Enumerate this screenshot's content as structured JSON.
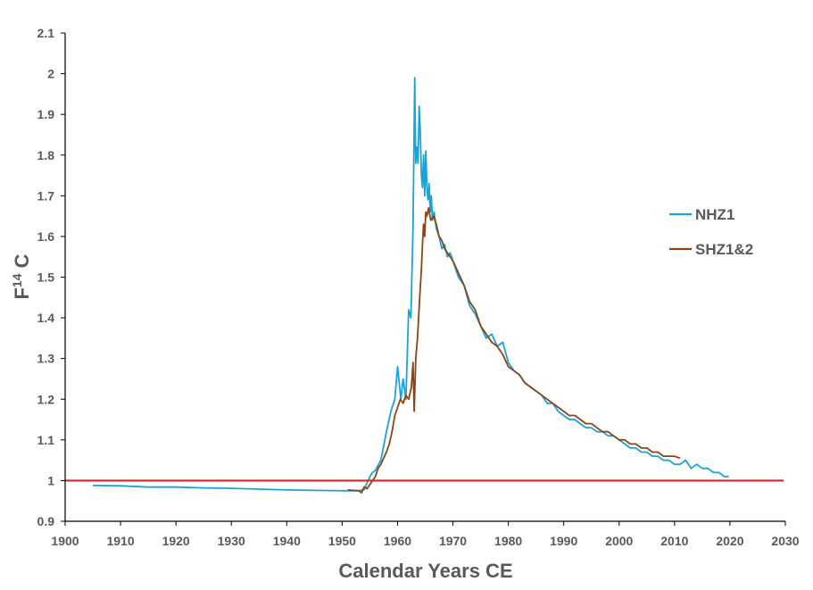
{
  "chart_data": {
    "type": "line",
    "title": "",
    "xlabel": "Calendar Years CE",
    "ylabel": "F",
    "ylabel_superscript": "14",
    "ylabel_suffix": " C",
    "xlim": [
      1900,
      2030
    ],
    "ylim": [
      0.9,
      2.1
    ],
    "xticks": [
      1900,
      1910,
      1920,
      1930,
      1940,
      1950,
      1960,
      1970,
      1980,
      1990,
      2000,
      2010,
      2020,
      2030
    ],
    "yticks": [
      0.9,
      1,
      1.1,
      1.2,
      1.3,
      1.4,
      1.5,
      1.6,
      1.7,
      1.8,
      1.9,
      2,
      2.1
    ],
    "ytick_labels": [
      "0.9",
      "1",
      "1.1",
      "1.2",
      "1.3",
      "1.4",
      "1.5",
      "1.6",
      "1.7",
      "1.8",
      "1.9",
      "2",
      "2.1"
    ],
    "grid": false,
    "legend_position": "right",
    "reference_line": {
      "y": 1.0,
      "color": "#d9262e"
    },
    "series": [
      {
        "name": "NHZ1",
        "color": "#1aa3d6",
        "x": [
          1905,
          1910,
          1915,
          1920,
          1925,
          1930,
          1935,
          1940,
          1945,
          1950,
          1953,
          1954,
          1955,
          1955.5,
          1956,
          1957,
          1958,
          1958.8,
          1959.5,
          1960,
          1960.6,
          1961,
          1961.5,
          1962,
          1962.4,
          1962.8,
          1963.1,
          1963.3,
          1963.5,
          1963.7,
          1963.9,
          1964.1,
          1964.3,
          1964.5,
          1964.7,
          1964.9,
          1965.1,
          1965.3,
          1965.5,
          1965.7,
          1965.9,
          1966.1,
          1966.3,
          1966.6,
          1967,
          1967.5,
          1968,
          1968.5,
          1969,
          1969.5,
          1970,
          1971,
          1972,
          1973,
          1974,
          1975,
          1976,
          1977,
          1978,
          1979,
          1980,
          1981,
          1982,
          1983,
          1984,
          1985,
          1986,
          1987,
          1988,
          1989,
          1990,
          1991,
          1992,
          1993,
          1994,
          1995,
          1996,
          1997,
          1998,
          1999,
          2000,
          2001,
          2002,
          2003,
          2004,
          2005,
          2006,
          2007,
          2008,
          2009,
          2010,
          2011,
          2012,
          2013,
          2014,
          2015,
          2016,
          2017,
          2018,
          2019,
          2019.8
        ],
        "y": [
          0.988,
          0.987,
          0.984,
          0.984,
          0.982,
          0.981,
          0.979,
          0.977,
          0.976,
          0.975,
          0.975,
          0.978,
          1.01,
          1.02,
          1.025,
          1.05,
          1.12,
          1.17,
          1.2,
          1.28,
          1.2,
          1.25,
          1.2,
          1.42,
          1.4,
          1.62,
          1.99,
          1.78,
          1.82,
          1.78,
          1.92,
          1.86,
          1.75,
          1.72,
          1.8,
          1.7,
          1.81,
          1.72,
          1.69,
          1.73,
          1.66,
          1.7,
          1.64,
          1.66,
          1.62,
          1.6,
          1.57,
          1.58,
          1.55,
          1.56,
          1.54,
          1.5,
          1.48,
          1.43,
          1.41,
          1.38,
          1.35,
          1.36,
          1.33,
          1.34,
          1.29,
          1.27,
          1.26,
          1.24,
          1.23,
          1.22,
          1.21,
          1.19,
          1.19,
          1.17,
          1.16,
          1.15,
          1.15,
          1.14,
          1.13,
          1.13,
          1.12,
          1.12,
          1.11,
          1.11,
          1.1,
          1.09,
          1.08,
          1.08,
          1.07,
          1.07,
          1.06,
          1.06,
          1.05,
          1.05,
          1.04,
          1.04,
          1.05,
          1.03,
          1.04,
          1.03,
          1.03,
          1.02,
          1.02,
          1.01,
          1.01
        ]
      },
      {
        "name": "SHZ1&2",
        "color": "#8b4513",
        "x": [
          1951,
          1952,
          1953,
          1953.5,
          1954,
          1954.5,
          1955,
          1955.5,
          1956,
          1956.5,
          1957,
          1958,
          1958.5,
          1959,
          1959.5,
          1960,
          1960.5,
          1961,
          1961.5,
          1962,
          1962.5,
          1962.8,
          1963,
          1963.3,
          1963.6,
          1964,
          1964.3,
          1964.5,
          1964.7,
          1964.9,
          1965.1,
          1965.3,
          1965.6,
          1966,
          1966.5,
          1967,
          1967.5,
          1968,
          1968.5,
          1969,
          1969.5,
          1970,
          1971,
          1972,
          1973,
          1974,
          1975,
          1976,
          1977,
          1978,
          1979,
          1980,
          1981,
          1982,
          1983,
          1984,
          1985,
          1986,
          1987,
          1988,
          1989,
          1990,
          1991,
          1992,
          1993,
          1994,
          1995,
          1996,
          1997,
          1998,
          1999,
          2000,
          2001,
          2002,
          2003,
          2004,
          2005,
          2006,
          2007,
          2008,
          2009,
          2010,
          2011
        ],
        "y": [
          0.977,
          0.976,
          0.975,
          0.97,
          0.985,
          0.98,
          0.99,
          1.0,
          1.01,
          1.03,
          1.04,
          1.07,
          1.09,
          1.12,
          1.16,
          1.18,
          1.2,
          1.19,
          1.21,
          1.2,
          1.23,
          1.29,
          1.17,
          1.3,
          1.35,
          1.45,
          1.52,
          1.58,
          1.63,
          1.6,
          1.66,
          1.65,
          1.67,
          1.64,
          1.65,
          1.63,
          1.6,
          1.59,
          1.57,
          1.56,
          1.55,
          1.54,
          1.51,
          1.48,
          1.44,
          1.42,
          1.38,
          1.36,
          1.34,
          1.33,
          1.31,
          1.28,
          1.27,
          1.26,
          1.24,
          1.23,
          1.22,
          1.21,
          1.2,
          1.19,
          1.18,
          1.17,
          1.16,
          1.16,
          1.15,
          1.14,
          1.14,
          1.13,
          1.12,
          1.12,
          1.11,
          1.1,
          1.1,
          1.09,
          1.09,
          1.08,
          1.08,
          1.07,
          1.07,
          1.06,
          1.06,
          1.06,
          1.055
        ]
      }
    ]
  }
}
